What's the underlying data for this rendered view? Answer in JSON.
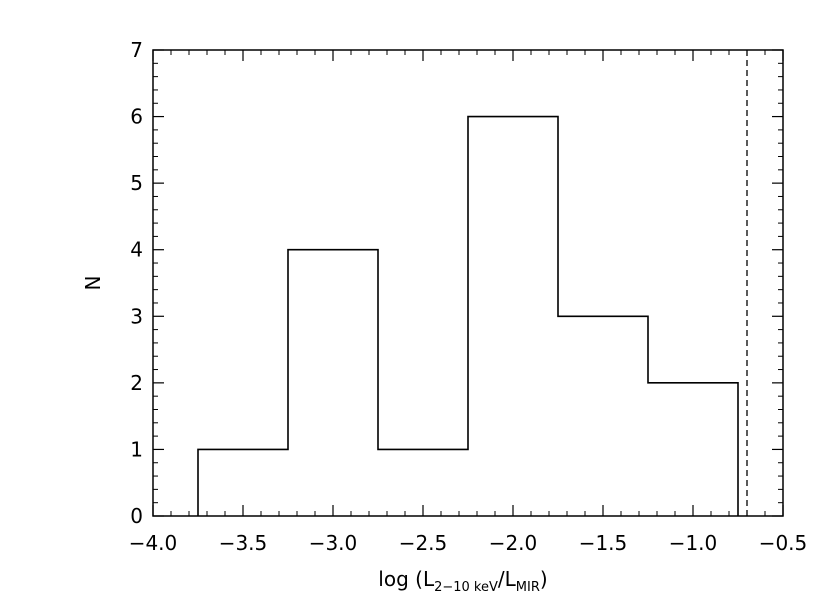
{
  "chart_data": {
    "type": "histogram",
    "xlabel": {
      "prefix": "log (L",
      "sub1": "2−10 keV",
      "mid": "/L",
      "sub2": "MIR",
      "suffix": ")"
    },
    "ylabel": "N",
    "xlim": [
      -4.0,
      -0.5
    ],
    "ylim": [
      0,
      7
    ],
    "x_ticks": [
      -4.0,
      -3.5,
      -3.0,
      -2.5,
      -2.0,
      -1.5,
      -1.0,
      -0.5
    ],
    "x_tick_labels": [
      "−4.0",
      "−3.5",
      "−3.0",
      "−2.5",
      "−2.0",
      "−1.5",
      "−1.0",
      "−0.5"
    ],
    "y_ticks": [
      0,
      1,
      2,
      3,
      4,
      5,
      6,
      7
    ],
    "y_tick_labels": [
      "0",
      "1",
      "2",
      "3",
      "4",
      "5",
      "6",
      "7"
    ],
    "bin_edges": [
      -3.75,
      -3.25,
      -2.75,
      -2.25,
      -1.75,
      -1.25,
      -0.75
    ],
    "counts": [
      1,
      4,
      1,
      6,
      3,
      2
    ],
    "reference_line": {
      "x": -0.7,
      "style": "dashed"
    }
  }
}
